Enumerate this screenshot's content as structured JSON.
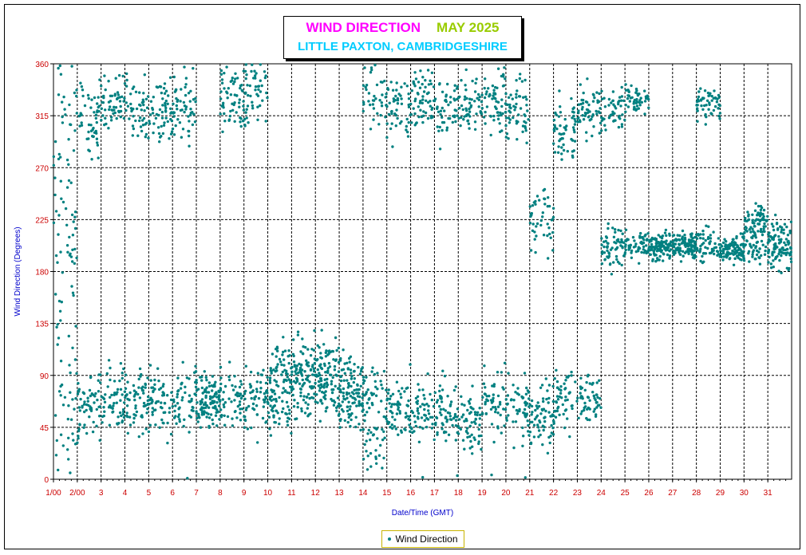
{
  "title": {
    "main": "WIND DIRECTION",
    "period": "MAY 2025",
    "location": "LITTLE PAXTON, CAMBRIDGESHIRE"
  },
  "legend": {
    "label": "Wind Direction"
  },
  "colors": {
    "series": "#008080",
    "axis_label": "#0000cc",
    "tick_label": "#cc0000",
    "title_main": "#ff00ff",
    "title_period": "#99cc00",
    "title_location": "#00ccff"
  },
  "chart_data": {
    "type": "scatter",
    "title": "WIND DIRECTION  MAY 2025",
    "subtitle": "LITTLE PAXTON, CAMBRIDGESHIRE",
    "xlabel": "Date/Time (GMT)",
    "ylabel": "Wind Direction (Degrees)",
    "ylim": [
      0,
      360
    ],
    "xlim": [
      1,
      32
    ],
    "yticks": [
      "0",
      "45",
      "90",
      "135",
      "180",
      "225",
      "270",
      "315",
      "360"
    ],
    "xticks": [
      "1/00",
      "2/00",
      "3",
      "4",
      "5",
      "6",
      "7",
      "8",
      "9",
      "10",
      "11",
      "12",
      "13",
      "14",
      "15",
      "16",
      "17",
      "18",
      "19",
      "20",
      "21",
      "22",
      "23",
      "24",
      "25",
      "26",
      "27",
      "28",
      "29",
      "30",
      "31"
    ],
    "grid": true,
    "legend_position": "bottom-center",
    "series": [
      {
        "name": "Wind Direction",
        "days": [
          {
            "day": 1,
            "mean": [
              200,
              320,
              80
            ],
            "spread": 60
          },
          {
            "day": 2,
            "mean": [
              315,
              65
            ],
            "spread": 25
          },
          {
            "day": 3,
            "mean": [
              325,
              70
            ],
            "spread": 25
          },
          {
            "day": 4,
            "mean": [
              320,
              65
            ],
            "spread": 25
          },
          {
            "day": 5,
            "mean": [
              320,
              65
            ],
            "spread": 25
          },
          {
            "day": 6,
            "mean": [
              325,
              65
            ],
            "spread": 25
          },
          {
            "day": 7,
            "mean": [
              68
            ],
            "spread": 20
          },
          {
            "day": 8,
            "mean": [
              70,
              330
            ],
            "spread": 25
          },
          {
            "day": 9,
            "mean": [
              70,
              335
            ],
            "spread": 25
          },
          {
            "day": 10,
            "mean": [
              95,
              65
            ],
            "spread": 20
          },
          {
            "day": 11,
            "mean": [
              100,
              80
            ],
            "spread": 25
          },
          {
            "day": 12,
            "mean": [
              100,
              75
            ],
            "spread": 25
          },
          {
            "day": 13,
            "mean": [
              85,
              65
            ],
            "spread": 20
          },
          {
            "day": 14,
            "mean": [
              70,
              330,
              30
            ],
            "spread": 25
          },
          {
            "day": 15,
            "mean": [
              320,
              60
            ],
            "spread": 25
          },
          {
            "day": 16,
            "mean": [
              330,
              60
            ],
            "spread": 25
          },
          {
            "day": 17,
            "mean": [
              325,
              60
            ],
            "spread": 25
          },
          {
            "day": 18,
            "mean": [
              325,
              50
            ],
            "spread": 25
          },
          {
            "day": 19,
            "mean": [
              70,
              330
            ],
            "spread": 25
          },
          {
            "day": 20,
            "mean": [
              60,
              320
            ],
            "spread": 25
          },
          {
            "day": 21,
            "mean": [
              55,
              225
            ],
            "spread": 25
          },
          {
            "day": 22,
            "mean": [
              70,
              300
            ],
            "spread": 25
          },
          {
            "day": 23,
            "mean": [
              70,
              320
            ],
            "spread": 20
          },
          {
            "day": 24,
            "mean": [
              200,
              320
            ],
            "spread": 15
          },
          {
            "day": 25,
            "mean": [
              203,
              330
            ],
            "spread": 10
          },
          {
            "day": 26,
            "mean": [
              202
            ],
            "spread": 10
          },
          {
            "day": 27,
            "mean": [
              203
            ],
            "spread": 10
          },
          {
            "day": 28,
            "mean": [
              200,
              325
            ],
            "spread": 12
          },
          {
            "day": 29,
            "mean": [
              200
            ],
            "spread": 10
          },
          {
            "day": 30,
            "mean": [
              200,
              225
            ],
            "spread": 12
          },
          {
            "day": 31,
            "mean": [
              205,
              200
            ],
            "spread": 18
          }
        ]
      }
    ]
  }
}
